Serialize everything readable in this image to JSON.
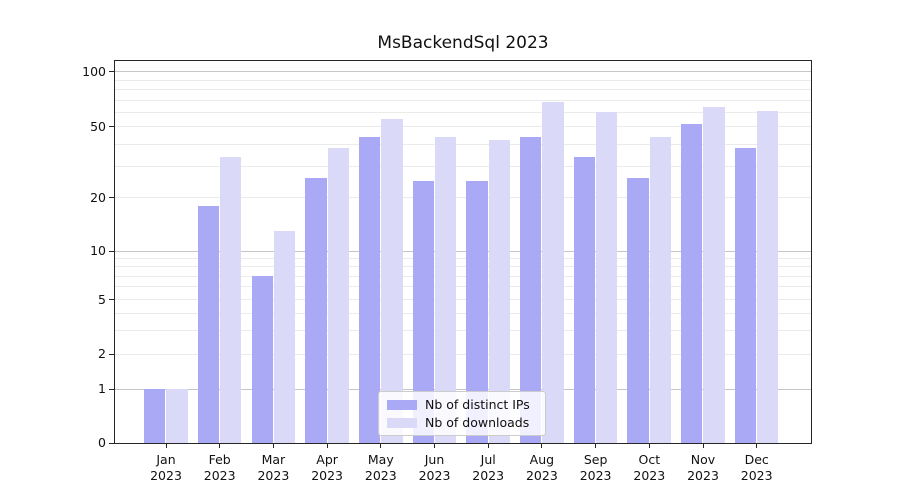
{
  "chart_data": {
    "type": "bar",
    "title": "MsBackendSql 2023",
    "categories": [
      "Jan",
      "Feb",
      "Mar",
      "Apr",
      "May",
      "Jun",
      "Jul",
      "Aug",
      "Sep",
      "Oct",
      "Nov",
      "Dec"
    ],
    "category_year": "2023",
    "series": [
      {
        "name": "Nb of distinct IPs",
        "color": "#a9a9f6",
        "values": [
          1,
          18,
          7,
          26,
          44,
          25,
          25,
          44,
          34,
          26,
          52,
          38
        ]
      },
      {
        "name": "Nb of downloads",
        "color": "#dadaf8",
        "values": [
          1,
          34,
          13,
          38,
          55,
          44,
          42,
          68,
          60,
          44,
          64,
          61
        ]
      }
    ],
    "xlabel": "",
    "ylabel": "",
    "yscale": "symlog",
    "ylim": [
      0,
      115
    ],
    "yticks": [
      0,
      1,
      2,
      5,
      10,
      20,
      50,
      100
    ],
    "major_grid_yticks": [
      1,
      10,
      100
    ],
    "minor_grid_yticks": [
      2,
      3,
      4,
      5,
      6,
      7,
      8,
      9,
      20,
      30,
      40,
      50,
      60,
      70,
      80,
      90
    ],
    "grid": true,
    "legend_position": "lower center",
    "scale_anchors": {
      "values": [
        0,
        1,
        2,
        5,
        10,
        20,
        50,
        100
      ],
      "fractions": [
        0,
        0.1406,
        0.2318,
        0.375,
        0.5026,
        0.6414,
        0.8281,
        0.9714
      ]
    },
    "colors": {
      "major_gridline": "#c6c6c6",
      "minor_gridline": "#ebebeb",
      "spine": "#262626",
      "text": "#111111"
    }
  }
}
